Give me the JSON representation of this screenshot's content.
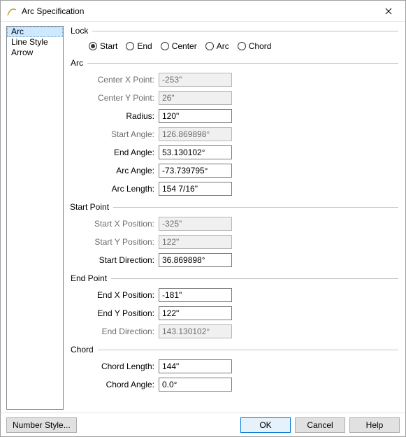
{
  "window": {
    "title": "Arc Specification",
    "close_icon": "close"
  },
  "sidebar": {
    "items": [
      {
        "label": "Arc",
        "selected": true
      },
      {
        "label": "Line Style",
        "selected": false
      },
      {
        "label": "Arrow",
        "selected": false
      }
    ]
  },
  "lock": {
    "title": "Lock",
    "options": [
      {
        "label": "Start",
        "checked": true
      },
      {
        "label": "End",
        "checked": false
      },
      {
        "label": "Center",
        "checked": false
      },
      {
        "label": "Arc",
        "checked": false
      },
      {
        "label": "Chord",
        "checked": false
      }
    ]
  },
  "arc": {
    "title": "Arc",
    "fields": [
      {
        "label": "Center X Point:",
        "value": "-253\"",
        "enabled": false
      },
      {
        "label": "Center Y Point:",
        "value": "26\"",
        "enabled": false
      },
      {
        "label": "Radius:",
        "value": "120\"",
        "enabled": true
      },
      {
        "label": "Start Angle:",
        "value": "126.869898°",
        "enabled": false
      },
      {
        "label": "End Angle:",
        "value": "53.130102°",
        "enabled": true
      },
      {
        "label": "Arc Angle:",
        "value": "-73.739795°",
        "enabled": true
      },
      {
        "label": "Arc Length:",
        "value": "154 7/16\"",
        "enabled": true
      }
    ]
  },
  "start_point": {
    "title": "Start Point",
    "fields": [
      {
        "label": "Start X Position:",
        "value": "-325\"",
        "enabled": false
      },
      {
        "label": "Start Y Position:",
        "value": "122\"",
        "enabled": false
      },
      {
        "label": "Start Direction:",
        "value": "36.869898°",
        "enabled": true
      }
    ]
  },
  "end_point": {
    "title": "End Point",
    "fields": [
      {
        "label": "End X Position:",
        "value": "-181\"",
        "enabled": true
      },
      {
        "label": "End Y Position:",
        "value": "122\"",
        "enabled": true
      },
      {
        "label": "End Direction:",
        "value": "143.130102°",
        "enabled": false
      }
    ]
  },
  "chord": {
    "title": "Chord",
    "fields": [
      {
        "label": "Chord Length:",
        "value": "144\"",
        "enabled": true
      },
      {
        "label": "Chord Angle:",
        "value": "0.0°",
        "enabled": true
      }
    ]
  },
  "buttons": {
    "number_style": "Number Style...",
    "ok": "OK",
    "cancel": "Cancel",
    "help": "Help"
  },
  "colors": {
    "selection_bg": "#cde8ff",
    "disabled_text": "#6d6d6d",
    "default_btn_border": "#0078d7"
  }
}
